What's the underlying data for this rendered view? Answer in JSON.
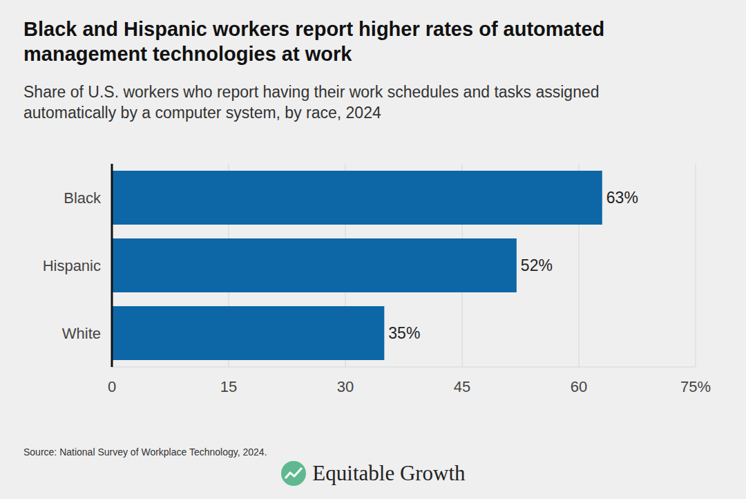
{
  "chart_data": {
    "type": "bar",
    "orientation": "horizontal",
    "title": "Black and Hispanic workers report higher rates of automated management technologies at work",
    "subtitle": "Share of U.S. workers who report having their work schedules and tasks assigned automatically by a computer system, by race, 2024",
    "categories": [
      "Black",
      "Hispanic",
      "White"
    ],
    "values": [
      63,
      52,
      35
    ],
    "value_labels": [
      "63%",
      "52%",
      "35%"
    ],
    "data_labels": true,
    "color": "#0d67a6",
    "xlim": [
      0,
      75
    ],
    "xticks": [
      0,
      15,
      30,
      45,
      60,
      {
        "value": 75,
        "label": "75%"
      }
    ],
    "grid": true,
    "annotations": [
      "Source: National Survey of Workplace Technology, 2024.",
      "Equitable Growth"
    ]
  }
}
